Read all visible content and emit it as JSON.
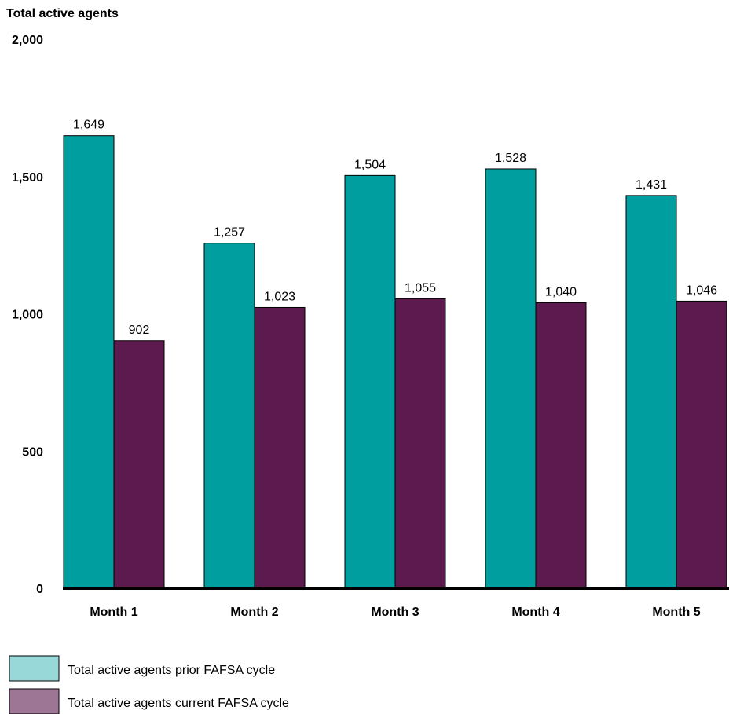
{
  "chart_data": {
    "type": "bar",
    "ylabel": "Total active agents",
    "ylim": [
      0,
      2000
    ],
    "yticks": [
      0,
      500,
      1000,
      1500,
      2000
    ],
    "ytick_labels": [
      "0",
      "500",
      "1,000",
      "1,500",
      "2,000"
    ],
    "categories": [
      "Month 1",
      "Month 2",
      "Month 3",
      "Month 4",
      "Month 5"
    ],
    "series": [
      {
        "name": "Total active agents prior FAFSA cycle",
        "values": [
          1649,
          1257,
          1504,
          1528,
          1431
        ],
        "labels": [
          "1,649",
          "1,257",
          "1,504",
          "1,528",
          "1,431"
        ],
        "color": "#009e9e",
        "legend_color": "#99d8d8"
      },
      {
        "name": "Total active agents current FAFSA cycle",
        "values": [
          902,
          1023,
          1055,
          1040,
          1046
        ],
        "labels": [
          "902",
          "1,023",
          "1,055",
          "1,040",
          "1,046"
        ],
        "color": "#5c1a4e",
        "legend_color": "#9d7595"
      }
    ],
    "grid": false,
    "legend_position": "bottom-left"
  }
}
